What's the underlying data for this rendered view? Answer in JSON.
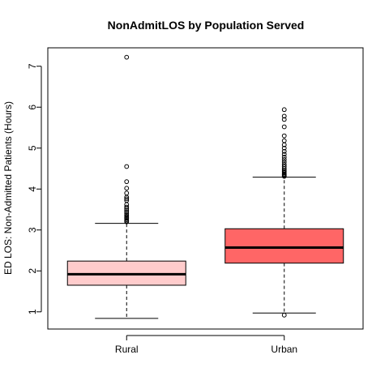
{
  "chart_data": {
    "type": "boxplot",
    "title": "NonAdmitLOS by Population Served",
    "xlabel": "",
    "ylabel": "ED LOS: Non-Admitted Patients (Hours)",
    "ylim": [
      0.58,
      7.45
    ],
    "yticks": [
      1,
      2,
      3,
      4,
      5,
      6,
      7
    ],
    "categories": [
      "Rural",
      "Urban"
    ],
    "boxes": [
      {
        "category": "Rural",
        "color": "#ffcccc",
        "whisker_low": 0.84,
        "q1": 1.65,
        "median": 1.92,
        "q3": 2.24,
        "whisker_high": 3.16,
        "outliers": [
          3.2,
          3.22,
          3.25,
          3.28,
          3.3,
          3.33,
          3.36,
          3.4,
          3.44,
          3.48,
          3.52,
          3.56,
          3.62,
          3.72,
          3.76,
          3.8,
          3.9,
          4.02,
          4.18,
          4.55,
          7.22
        ]
      },
      {
        "category": "Urban",
        "color": "#ff6666",
        "whisker_low": 0.97,
        "q1": 2.19,
        "median": 2.57,
        "q3": 3.03,
        "whisker_high": 4.29,
        "outliers": [
          0.92,
          4.31,
          4.33,
          4.35,
          4.37,
          4.4,
          4.43,
          4.46,
          4.5,
          4.55,
          4.6,
          4.66,
          4.72,
          4.78,
          4.85,
          4.92,
          5.0,
          5.08,
          5.18,
          5.3,
          5.52,
          5.7,
          5.78,
          5.94
        ]
      }
    ],
    "grid": false,
    "legend": "none"
  }
}
